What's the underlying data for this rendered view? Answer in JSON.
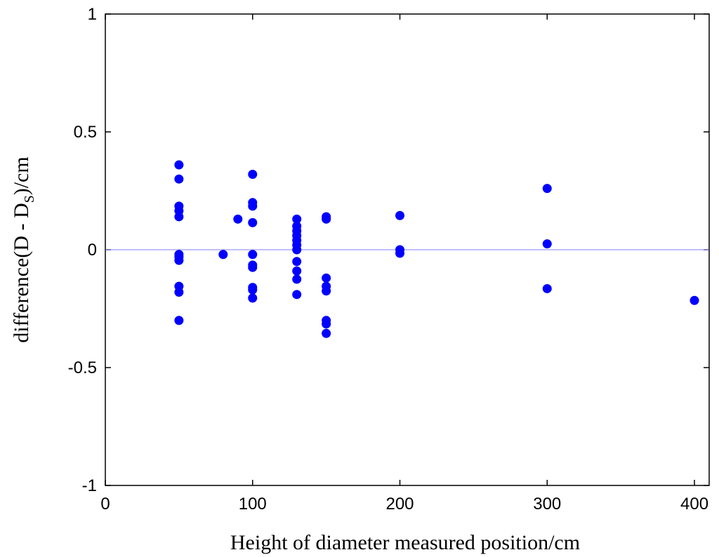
{
  "chart_data": {
    "type": "scatter",
    "xlabel": "Height of diameter measured position/cm",
    "ylabel": {
      "prefix": "difference(D - D",
      "subscript": "S",
      "suffix": ")/cm"
    },
    "xlim": [
      0,
      410
    ],
    "ylim": [
      -1,
      1
    ],
    "xticks": [
      0,
      100,
      200,
      300,
      400
    ],
    "xtick_labels": [
      "0",
      "100",
      "200",
      "300",
      "400"
    ],
    "yticks": [
      -1,
      -0.5,
      0,
      0.5,
      1
    ],
    "ytick_labels": [
      "-1",
      "-0.5",
      "0",
      "0.5",
      "1"
    ],
    "reference_line": {
      "y": 0,
      "color": "#8080ff"
    },
    "marker_color": "#0000ff",
    "grid": false,
    "series": [
      {
        "points": [
          [
            50,
            0.36
          ],
          [
            50,
            0.3
          ],
          [
            50,
            0.185
          ],
          [
            50,
            0.165
          ],
          [
            50,
            0.14
          ],
          [
            50,
            -0.02
          ],
          [
            50,
            -0.03
          ],
          [
            50,
            -0.045
          ],
          [
            50,
            -0.155
          ],
          [
            50,
            -0.18
          ],
          [
            50,
            -0.3
          ],
          [
            80,
            -0.02
          ],
          [
            90,
            0.13
          ],
          [
            100,
            0.32
          ],
          [
            100,
            0.2
          ],
          [
            100,
            0.185
          ],
          [
            100,
            0.115
          ],
          [
            100,
            -0.02
          ],
          [
            100,
            -0.065
          ],
          [
            100,
            -0.075
          ],
          [
            100,
            -0.16
          ],
          [
            100,
            -0.17
          ],
          [
            100,
            -0.205
          ],
          [
            130,
            0.13
          ],
          [
            130,
            0.1
          ],
          [
            130,
            0.08
          ],
          [
            130,
            0.06
          ],
          [
            130,
            0.04
          ],
          [
            130,
            0.02
          ],
          [
            130,
            0.0
          ],
          [
            130,
            -0.05
          ],
          [
            130,
            -0.09
          ],
          [
            130,
            -0.125
          ],
          [
            130,
            -0.19
          ],
          [
            150,
            0.14
          ],
          [
            150,
            0.13
          ],
          [
            150,
            -0.12
          ],
          [
            150,
            -0.155
          ],
          [
            150,
            -0.175
          ],
          [
            150,
            -0.3
          ],
          [
            150,
            -0.315
          ],
          [
            150,
            -0.355
          ],
          [
            200,
            0.145
          ],
          [
            200,
            0.0
          ],
          [
            200,
            -0.015
          ],
          [
            300,
            0.26
          ],
          [
            300,
            0.025
          ],
          [
            300,
            -0.165
          ],
          [
            400,
            -0.215
          ]
        ]
      }
    ]
  }
}
